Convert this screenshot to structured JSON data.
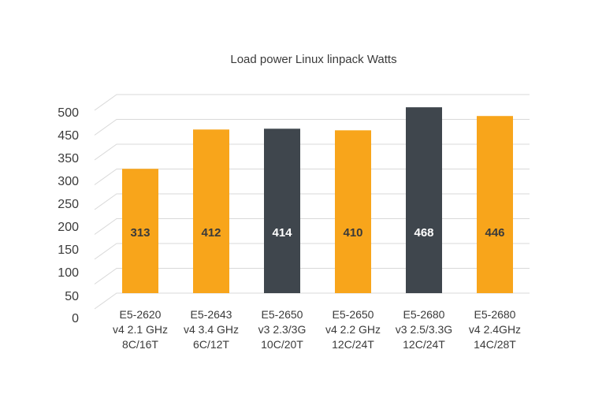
{
  "chart_data": {
    "type": "bar",
    "title": "Load power Linux linpack Watts",
    "xlabel": "",
    "ylabel": "",
    "ylim": [
      0,
      500
    ],
    "yticks": [
      "0",
      "50",
      "100",
      "150",
      "200",
      "250",
      "300",
      "350",
      "450",
      "500"
    ],
    "categories": [
      [
        "E5-2620",
        "v4 2.1 GHz",
        "8C/16T"
      ],
      [
        "E5-2643",
        "v4 3.4 GHz",
        "6C/12T"
      ],
      [
        "E5-2650",
        "v3 2.3/3G",
        "10C/20T"
      ],
      [
        "E5-2650",
        "v4 2.2 GHz",
        "12C/24T"
      ],
      [
        "E5-2680",
        "v3 2.5/3.3G",
        "12C/24T"
      ],
      [
        "E5-2680",
        "v4 2.4GHz",
        "14C/28T"
      ]
    ],
    "values": [
      313,
      412,
      414,
      410,
      468,
      446
    ],
    "data_labels": [
      "313",
      "412",
      "414",
      "410",
      "468",
      "446"
    ],
    "bar_colors": [
      "#f8a51b",
      "#f8a51b",
      "#3f464d",
      "#f8a51b",
      "#3f464d",
      "#f8a51b"
    ],
    "label_colors": [
      "#3a3a3a",
      "#3a3a3a",
      "#ffffff",
      "#3a3a3a",
      "#ffffff",
      "#3a3a3a"
    ],
    "grid": true,
    "legend": "none"
  }
}
